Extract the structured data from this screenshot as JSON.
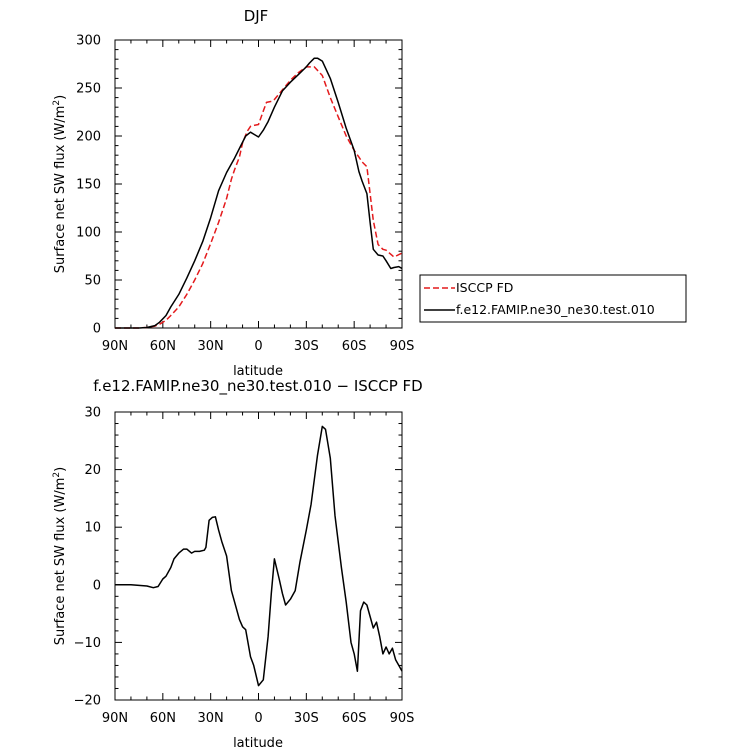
{
  "chart_data": [
    {
      "type": "line",
      "title": "DJF",
      "xlabel": "latitude",
      "ylabel": "Surface net SW flux (W/m²)",
      "ylabel_parts": [
        "Surface net SW flux (W/m",
        "2",
        ")"
      ],
      "xlim": [
        90,
        -90
      ],
      "ylim": [
        0,
        300
      ],
      "xticks": [
        90,
        60,
        30,
        0,
        -30,
        -60,
        -90
      ],
      "xtick_labels": [
        "90N",
        "60N",
        "30N",
        "0",
        "30S",
        "60S",
        "90S"
      ],
      "yticks": [
        0,
        50,
        100,
        150,
        200,
        250,
        300
      ],
      "ytick_labels": [
        "0",
        "50",
        "100",
        "150",
        "200",
        "250",
        "300"
      ],
      "legend": {
        "placement": "outside-right"
      },
      "series": [
        {
          "name": "ISCCP FD",
          "color": "#e41a1c",
          "dash": true,
          "x": [
            90,
            85,
            80,
            75,
            70,
            65,
            62,
            58,
            55,
            50,
            45,
            40,
            35,
            30,
            25,
            20,
            17,
            15,
            12,
            10,
            7,
            5,
            3,
            0,
            -3,
            -5,
            -8,
            -10,
            -15,
            -20,
            -25,
            -30,
            -35,
            -40,
            -45,
            -50,
            -55,
            -60,
            -63,
            -65,
            -68,
            -70,
            -72,
            -75,
            -78,
            -80,
            -85,
            -90
          ],
          "y": [
            0,
            0,
            0,
            0,
            0.5,
            2,
            4,
            8,
            13,
            22,
            35,
            50,
            67,
            88,
            110,
            135,
            155,
            165,
            178,
            193,
            205,
            210,
            211,
            212,
            226,
            235,
            236,
            238,
            248,
            258,
            266,
            272,
            272,
            263,
            240,
            220,
            200,
            185,
            178,
            173,
            168,
            140,
            112,
            87,
            82,
            81,
            74,
            78
          ]
        },
        {
          "name": "f.e12.FAMIP.ne30_ne30.test.010",
          "color": "#000000",
          "dash": false,
          "x": [
            90,
            85,
            80,
            75,
            70,
            65,
            62,
            58,
            55,
            50,
            45,
            40,
            35,
            30,
            25,
            20,
            15,
            12,
            8,
            5,
            3,
            0,
            -3,
            -6,
            -10,
            -15,
            -20,
            -25,
            -30,
            -32,
            -35,
            -37,
            -40,
            -45,
            -50,
            -55,
            -60,
            -63,
            -65,
            -68,
            -70,
            -72,
            -75,
            -78,
            -80,
            -83,
            -85,
            -88,
            -90
          ],
          "y": [
            0,
            0,
            0,
            0,
            0.5,
            2.5,
            6,
            13,
            22,
            35,
            52,
            70,
            90,
            115,
            143,
            162,
            177,
            187,
            200,
            204,
            202,
            199,
            206,
            215,
            230,
            247,
            256,
            264,
            272,
            276,
            281,
            281,
            278,
            260,
            235,
            208,
            185,
            163,
            153,
            140,
            110,
            82,
            76,
            75,
            70,
            62,
            63,
            64,
            62
          ]
        }
      ]
    },
    {
      "type": "line",
      "title": "f.e12.FAMIP.ne30_ne30.test.010 − ISCCP FD",
      "xlabel": "latitude",
      "ylabel": "Surface net SW flux (W/m²)",
      "ylabel_parts": [
        "Surface net SW flux (W/m",
        "2",
        ")"
      ],
      "xlim": [
        90,
        -90
      ],
      "ylim": [
        -20,
        30
      ],
      "xticks": [
        90,
        60,
        30,
        0,
        -30,
        -60,
        -90
      ],
      "xtick_labels": [
        "90N",
        "60N",
        "30N",
        "0",
        "30S",
        "60S",
        "90S"
      ],
      "yticks": [
        -20,
        -10,
        0,
        10,
        20,
        30
      ],
      "ytick_labels": [
        "−20",
        "−10",
        "0",
        "10",
        "20",
        "30"
      ],
      "series": [
        {
          "color": "#000000",
          "dash": false,
          "x": [
            90,
            85,
            80,
            75,
            70,
            66,
            63,
            60,
            58,
            55,
            53,
            50,
            47,
            45,
            42,
            40,
            37,
            34,
            33,
            31,
            29,
            27,
            25,
            23,
            20,
            17,
            15,
            12,
            10,
            8,
            5,
            3,
            0,
            -3,
            -6,
            -8,
            -10,
            -13,
            -15,
            -17,
            -20,
            -23,
            -26,
            -30,
            -33,
            -37,
            -40,
            -42,
            -45,
            -48,
            -52,
            -55,
            -58,
            -60,
            -62,
            -64,
            -66,
            -68,
            -70,
            -72,
            -74,
            -76,
            -78,
            -80,
            -82,
            -84,
            -86,
            -88,
            -90
          ],
          "y": [
            0,
            0,
            0,
            -0.1,
            -0.2,
            -0.5,
            -0.3,
            1,
            1.5,
            3,
            4.5,
            5.5,
            6.2,
            6.2,
            5.5,
            5.8,
            5.8,
            6,
            6.5,
            11.2,
            11.7,
            11.8,
            9.5,
            7.5,
            5,
            -1,
            -3,
            -6,
            -7.3,
            -7.8,
            -12.5,
            -14,
            -17.5,
            -16.5,
            -9,
            -1.5,
            4.5,
            1,
            -1.5,
            -3.5,
            -2.5,
            -1,
            4,
            9.5,
            14,
            22.5,
            27.5,
            27,
            22,
            12,
            3,
            -3,
            -10,
            -12,
            -15,
            -4.5,
            -3,
            -3.5,
            -5.5,
            -7.5,
            -6.5,
            -9,
            -12,
            -10.8,
            -12,
            -11,
            -13,
            -14,
            -15
          ]
        }
      ]
    }
  ]
}
